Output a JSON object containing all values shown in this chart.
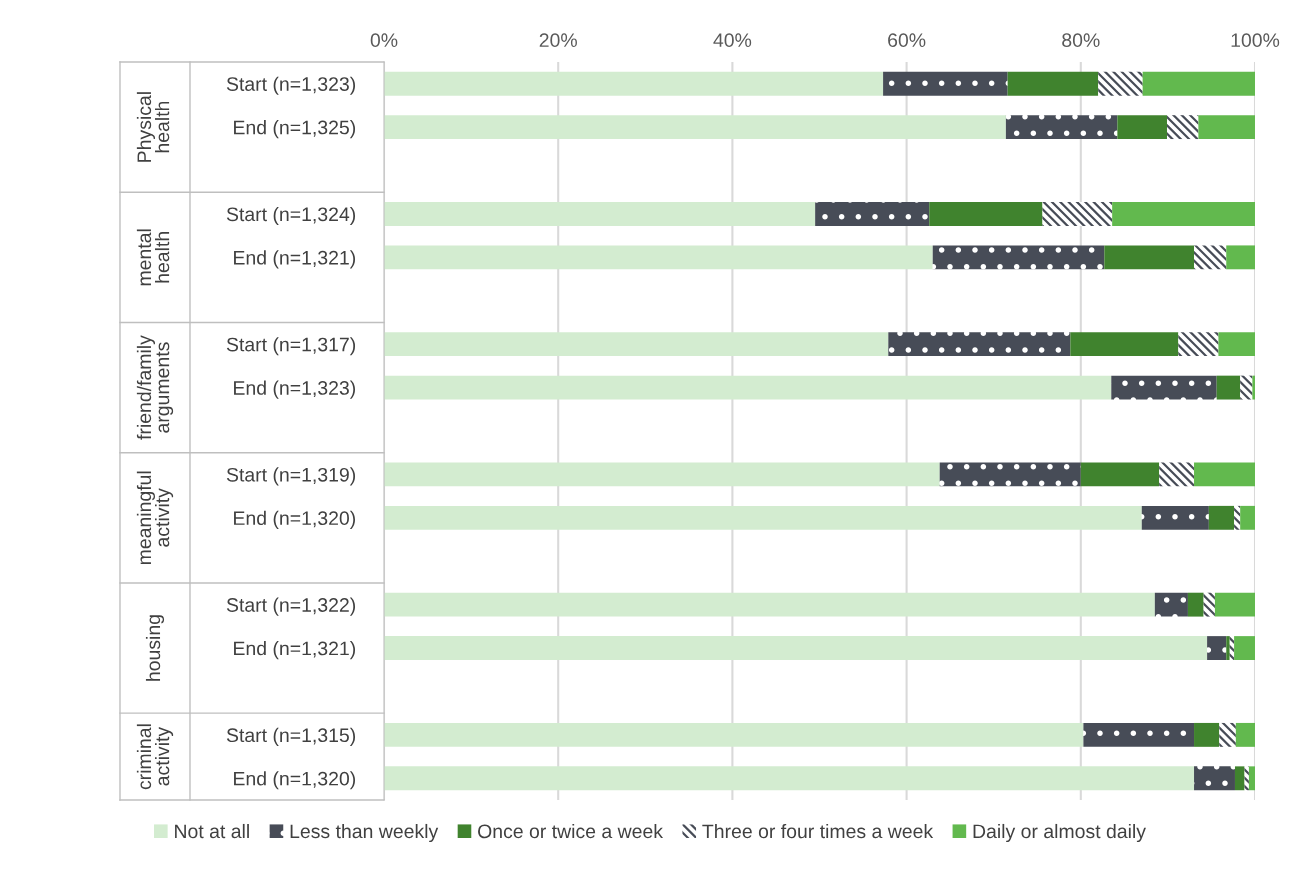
{
  "chart_data": {
    "type": "bar",
    "orientation": "horizontal",
    "stacked": true,
    "categories": [
      "Start (n=1,323)",
      "End (n=1,325)",
      null,
      "Start (n=1,324)",
      "End (n=1,321)",
      null,
      "Start (n=1,317)",
      "End (n=1,323)",
      null,
      "Start (n=1,319)",
      "End (n=1,320)",
      null,
      "Start (n=1,322)",
      "End (n=1,321)",
      null,
      "Start (n=1,315)",
      "End (n=1,320)"
    ],
    "series": [
      {
        "name": "Not at all",
        "color": "#d3ecd0",
        "values": [
          57.3,
          71.4,
          null,
          49.5,
          63.0,
          null,
          57.9,
          83.5,
          null,
          63.8,
          87.0,
          null,
          88.5,
          94.5,
          null,
          80.3,
          93.0
        ]
      },
      {
        "name": "Less than weekly",
        "color": "#474c57",
        "values": [
          14.3,
          12.8,
          null,
          13.1,
          19.7,
          null,
          20.9,
          12.1,
          null,
          16.2,
          7.7,
          null,
          3.8,
          2.2,
          null,
          12.7,
          4.7
        ]
      },
      {
        "name": "Once or twice a week",
        "color": "#40832e",
        "values": [
          10.4,
          5.7,
          null,
          13.0,
          10.3,
          null,
          12.4,
          2.7,
          null,
          9.0,
          2.9,
          null,
          1.8,
          0.4,
          null,
          2.9,
          1.1
        ]
      },
      {
        "name": "Three or four times a week",
        "color": "#474c57",
        "values": [
          5.1,
          3.6,
          null,
          8.0,
          3.7,
          null,
          4.6,
          1.4,
          null,
          4.0,
          0.7,
          null,
          1.3,
          0.5,
          null,
          1.9,
          0.5
        ]
      },
      {
        "name": "Daily or almost daily",
        "color": "#62b94e",
        "values": [
          12.9,
          6.5,
          null,
          16.4,
          3.3,
          null,
          4.2,
          0.3,
          null,
          7.0,
          1.7,
          null,
          4.6,
          2.4,
          null,
          2.2,
          0.7
        ]
      }
    ],
    "annotations": [
      "Physical health",
      "mental health",
      "friend/family arguments",
      "meaningful activity",
      "housing",
      "criminal activity"
    ],
    "xlim": [
      0,
      100
    ],
    "xticks": [
      {
        "value": 0,
        "label": "0%"
      },
      {
        "value": 20,
        "label": "20%"
      },
      {
        "value": 40,
        "label": "40%"
      },
      {
        "value": 60,
        "label": "60%"
      },
      {
        "value": 80,
        "label": "80%"
      },
      {
        "value": 100,
        "label": "100%"
      }
    ],
    "grid": "x",
    "legend": "bottom"
  }
}
